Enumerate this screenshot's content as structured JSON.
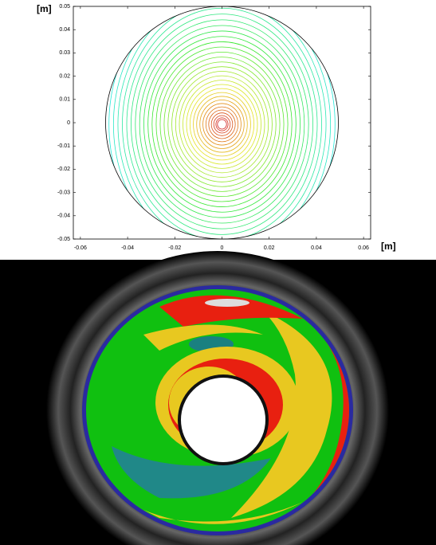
{
  "chart_data": {
    "type": "contour",
    "x_label": "[m]",
    "y_label": "[m]",
    "xlim": [
      -0.063,
      0.063
    ],
    "ylim": [
      -0.05,
      0.05
    ],
    "xticks": [
      -0.06,
      -0.04,
      -0.02,
      0,
      0.02,
      0.04,
      0.06
    ],
    "yticks": [
      0.05,
      0.04,
      0.03,
      0.02,
      0.01,
      0,
      -0.01,
      -0.02,
      -0.03,
      -0.04,
      -0.05
    ]
  }
}
